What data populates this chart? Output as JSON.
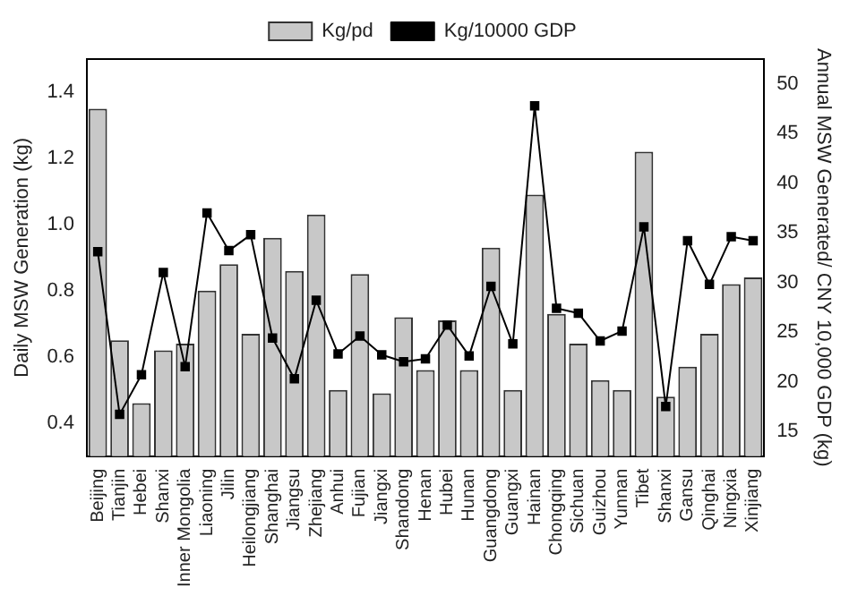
{
  "chart_data": {
    "type": "bar",
    "ylabel": "Daily MSW Generation (kg)",
    "y2label": "Annual MSW Generated/ CNY 10,000 GDP (kg)",
    "categories": [
      "Beijing",
      "Tianjin",
      "Hebei",
      "Shanxi",
      "Inner Mongolia",
      "Liaoning",
      "Jilin",
      "Heilongjiang",
      "Shanghai",
      "Jiangsu",
      "Zhejiang",
      "Anhui",
      "Fujian",
      "Jiangxi",
      "Shandong",
      "Henan",
      "Hubei",
      "Hunan",
      "Guangdong",
      "Guangxi",
      "Hainan",
      "Chongqing",
      "Sichuan",
      "Guizhou",
      "Yunnan",
      "Tibet",
      "Shanxi",
      "Gansu",
      "Qinghai",
      "Ningxia",
      "Xinjiang"
    ],
    "series": [
      {
        "name": "Kg/pd",
        "color": "#c8c8c8",
        "values": [
          1.35,
          0.65,
          0.46,
          0.62,
          0.64,
          0.8,
          0.88,
          0.67,
          0.96,
          0.86,
          1.03,
          0.5,
          0.85,
          0.49,
          0.72,
          0.56,
          0.71,
          0.56,
          0.93,
          0.5,
          1.09,
          0.73,
          0.64,
          0.53,
          0.5,
          1.22,
          0.48,
          0.57,
          0.67,
          0.82,
          0.84
        ]
      },
      {
        "name": "Kg/10000 GDP",
        "type": "line",
        "axis": "y2",
        "color": "#000000",
        "values": [
          33.1,
          16.7,
          20.7,
          31.0,
          21.5,
          37.0,
          33.2,
          34.8,
          24.4,
          20.3,
          28.2,
          22.8,
          24.6,
          22.7,
          22.0,
          22.3,
          25.7,
          22.6,
          29.6,
          23.8,
          47.8,
          27.4,
          26.9,
          24.1,
          25.1,
          35.6,
          17.5,
          34.2,
          29.8,
          34.6,
          34.2
        ]
      }
    ],
    "ylim": [
      0.3,
      1.5
    ],
    "yticks": [
      0.4,
      0.6,
      0.8,
      {
        "value": 1.0,
        "label": "1.0"
      },
      1.2,
      1.4
    ],
    "y2lim": [
      12.5,
      52.5
    ],
    "y2ticks": [
      15,
      20,
      25,
      30,
      35,
      40,
      45,
      50
    ],
    "marker": "square",
    "line_style": "solid",
    "legend": "top",
    "grid": false
  }
}
